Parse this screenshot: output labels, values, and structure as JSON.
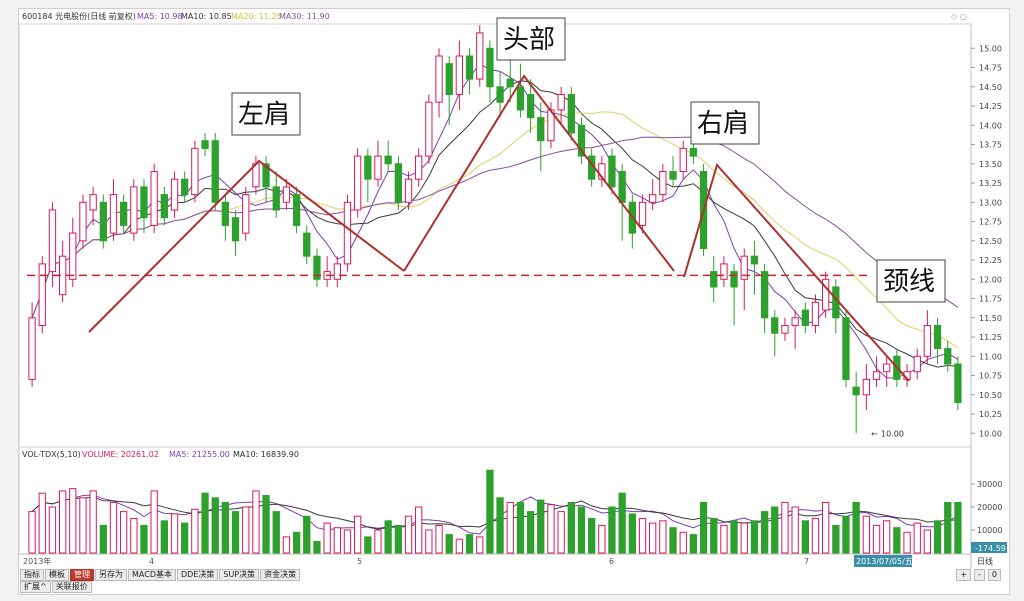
{
  "header": {
    "title": "600184 光电股份(日线 前复权)",
    "ma5": "MA5: 10.98",
    "ma10": "MA10: 10.85",
    "ma20": "MA20: 11.25",
    "ma30": "MA30: 11.90"
  },
  "colors": {
    "up": "#d81b5a",
    "down": "#2ea02e",
    "ma5": "#7a3db8",
    "ma10": "#3a3a3a",
    "ma20": "#e0d060",
    "ma30": "#8e4d9e",
    "trend": "#b03030",
    "neckline": "#c62828"
  },
  "annotations": {
    "left_shoulder": "左肩",
    "head": "头部",
    "right_shoulder": "右肩",
    "neckline": "颈线",
    "low_label": "10.00"
  },
  "volume_header": {
    "name": "VOL-TDX(5,10)",
    "volume": "VOLUME: 20261.02",
    "ma5": "MA5: 21255.00",
    "ma10": "MA10: 16839.90"
  },
  "x_axis": {
    "labels": [
      "2013年",
      "4",
      "5",
      "6",
      "7"
    ],
    "date_badge": "2013/07/05/五",
    "right_label": "日线"
  },
  "vol_right_value": "-174.59",
  "toolbar": {
    "tabs": [
      "指标",
      "模板",
      "管理",
      "另存为",
      "MACD基本",
      "DDE决策",
      "SUP决策",
      "资金决策"
    ],
    "active": "管理",
    "row2": [
      "扩展^",
      "关联报价"
    ],
    "controls": [
      "+",
      "-",
      "0"
    ]
  },
  "chart_data": [
    {
      "type": "candlestick",
      "ylim": [
        9.9,
        15.25
      ],
      "yticks": [
        "15.00",
        "14.75",
        "14.50",
        "14.25",
        "14.00",
        "13.75",
        "13.50",
        "13.25",
        "13.00",
        "12.75",
        "12.50",
        "12.25",
        "12.00",
        "11.75",
        "11.50",
        "11.25",
        "11.00",
        "10.75",
        "10.50",
        "10.25",
        "10.00"
      ],
      "neckline": 12.05,
      "low_marker": 10.0,
      "candles": [
        {
          "o": 10.7,
          "c": 11.5,
          "h": 11.7,
          "l": 10.6
        },
        {
          "o": 11.4,
          "c": 12.2,
          "h": 12.3,
          "l": 11.3
        },
        {
          "o": 12.1,
          "c": 12.9,
          "h": 13.0,
          "l": 11.9
        },
        {
          "o": 11.8,
          "c": 12.3,
          "h": 12.5,
          "l": 11.7
        },
        {
          "o": 12.0,
          "c": 12.6,
          "h": 12.8,
          "l": 11.9
        },
        {
          "o": 12.5,
          "c": 13.0,
          "h": 13.1,
          "l": 12.4
        },
        {
          "o": 12.9,
          "c": 13.1,
          "h": 13.2,
          "l": 12.7
        },
        {
          "o": 13.0,
          "c": 12.5,
          "h": 13.1,
          "l": 12.4
        },
        {
          "o": 12.6,
          "c": 13.1,
          "h": 13.3,
          "l": 12.5
        },
        {
          "o": 13.0,
          "c": 12.7,
          "h": 13.1,
          "l": 12.6
        },
        {
          "o": 12.6,
          "c": 13.2,
          "h": 13.3,
          "l": 12.5
        },
        {
          "o": 13.2,
          "c": 12.8,
          "h": 13.3,
          "l": 12.6
        },
        {
          "o": 12.7,
          "c": 13.4,
          "h": 13.5,
          "l": 12.6
        },
        {
          "o": 13.1,
          "c": 12.8,
          "h": 13.2,
          "l": 12.7
        },
        {
          "o": 12.9,
          "c": 13.3,
          "h": 13.4,
          "l": 12.8
        },
        {
          "o": 13.3,
          "c": 13.1,
          "h": 13.4,
          "l": 13.0
        },
        {
          "o": 13.1,
          "c": 13.7,
          "h": 13.8,
          "l": 13.0
        },
        {
          "o": 13.8,
          "c": 13.7,
          "h": 13.9,
          "l": 13.6
        },
        {
          "o": 13.8,
          "c": 13.0,
          "h": 13.9,
          "l": 12.9
        },
        {
          "o": 13.0,
          "c": 12.7,
          "h": 13.1,
          "l": 12.5
        },
        {
          "o": 12.8,
          "c": 12.5,
          "h": 12.9,
          "l": 12.3
        },
        {
          "o": 12.6,
          "c": 13.1,
          "h": 13.2,
          "l": 12.5
        },
        {
          "o": 13.2,
          "c": 13.5,
          "h": 13.6,
          "l": 13.1
        },
        {
          "o": 13.5,
          "c": 13.2,
          "h": 13.6,
          "l": 13.0
        },
        {
          "o": 13.2,
          "c": 12.9,
          "h": 13.4,
          "l": 12.8
        },
        {
          "o": 13.0,
          "c": 13.2,
          "h": 13.3,
          "l": 12.9
        },
        {
          "o": 13.1,
          "c": 12.7,
          "h": 13.2,
          "l": 12.6
        },
        {
          "o": 12.6,
          "c": 12.3,
          "h": 12.7,
          "l": 12.2
        },
        {
          "o": 12.3,
          "c": 12.0,
          "h": 12.4,
          "l": 11.9
        },
        {
          "o": 12.0,
          "c": 12.1,
          "h": 12.3,
          "l": 11.9
        },
        {
          "o": 12.0,
          "c": 12.2,
          "h": 12.3,
          "l": 11.9
        },
        {
          "o": 12.2,
          "c": 13.0,
          "h": 13.1,
          "l": 12.1
        },
        {
          "o": 12.9,
          "c": 13.6,
          "h": 13.7,
          "l": 12.8
        },
        {
          "o": 13.6,
          "c": 13.3,
          "h": 13.7,
          "l": 13.0
        },
        {
          "o": 13.3,
          "c": 13.6,
          "h": 13.8,
          "l": 13.2
        },
        {
          "o": 13.6,
          "c": 13.5,
          "h": 13.8,
          "l": 13.4
        },
        {
          "o": 13.5,
          "c": 13.0,
          "h": 13.6,
          "l": 12.9
        },
        {
          "o": 13.0,
          "c": 13.3,
          "h": 13.4,
          "l": 12.9
        },
        {
          "o": 13.3,
          "c": 13.6,
          "h": 13.7,
          "l": 13.2
        },
        {
          "o": 13.6,
          "c": 14.3,
          "h": 14.4,
          "l": 13.5
        },
        {
          "o": 14.3,
          "c": 14.9,
          "h": 15.0,
          "l": 14.1
        },
        {
          "o": 14.8,
          "c": 14.4,
          "h": 14.9,
          "l": 14.0
        },
        {
          "o": 14.4,
          "c": 14.9,
          "h": 15.1,
          "l": 14.2
        },
        {
          "o": 14.9,
          "c": 14.6,
          "h": 15.0,
          "l": 14.4
        },
        {
          "o": 14.6,
          "c": 15.2,
          "h": 15.3,
          "l": 14.5
        },
        {
          "o": 15.0,
          "c": 14.5,
          "h": 15.1,
          "l": 14.3
        },
        {
          "o": 14.5,
          "c": 14.3,
          "h": 14.7,
          "l": 14.1
        },
        {
          "o": 14.6,
          "c": 14.5,
          "h": 14.9,
          "l": 14.3
        },
        {
          "o": 14.5,
          "c": 14.2,
          "h": 14.8,
          "l": 14.1
        },
        {
          "o": 14.4,
          "c": 14.1,
          "h": 14.6,
          "l": 13.9
        },
        {
          "o": 14.1,
          "c": 13.8,
          "h": 14.3,
          "l": 13.4
        },
        {
          "o": 13.8,
          "c": 14.2,
          "h": 14.3,
          "l": 13.7
        },
        {
          "o": 14.2,
          "c": 14.4,
          "h": 14.5,
          "l": 14.0
        },
        {
          "o": 14.4,
          "c": 13.9,
          "h": 14.5,
          "l": 13.8
        },
        {
          "o": 14.0,
          "c": 13.6,
          "h": 14.1,
          "l": 13.5
        },
        {
          "o": 13.6,
          "c": 13.3,
          "h": 13.7,
          "l": 13.2
        },
        {
          "o": 13.3,
          "c": 13.5,
          "h": 13.6,
          "l": 13.2
        },
        {
          "o": 13.6,
          "c": 13.2,
          "h": 13.7,
          "l": 13.1
        },
        {
          "o": 13.4,
          "c": 13.0,
          "h": 13.5,
          "l": 12.5
        },
        {
          "o": 13.0,
          "c": 12.6,
          "h": 13.1,
          "l": 12.4
        },
        {
          "o": 12.7,
          "c": 13.0,
          "h": 13.1,
          "l": 12.6
        },
        {
          "o": 13.0,
          "c": 13.1,
          "h": 13.3,
          "l": 12.9
        },
        {
          "o": 13.1,
          "c": 13.4,
          "h": 13.5,
          "l": 13.0
        },
        {
          "o": 13.4,
          "c": 13.3,
          "h": 13.6,
          "l": 13.2
        },
        {
          "o": 13.4,
          "c": 13.7,
          "h": 13.8,
          "l": 13.3
        },
        {
          "o": 13.7,
          "c": 13.6,
          "h": 13.8,
          "l": 13.5
        },
        {
          "o": 13.4,
          "c": 12.4,
          "h": 13.5,
          "l": 12.3
        },
        {
          "o": 12.1,
          "c": 11.9,
          "h": 12.3,
          "l": 11.7
        },
        {
          "o": 12.0,
          "c": 12.2,
          "h": 12.3,
          "l": 11.9
        },
        {
          "o": 12.1,
          "c": 11.9,
          "h": 12.2,
          "l": 11.4
        },
        {
          "o": 12.0,
          "c": 12.3,
          "h": 12.4,
          "l": 11.6
        },
        {
          "o": 12.3,
          "c": 12.2,
          "h": 12.5,
          "l": 11.8
        },
        {
          "o": 12.1,
          "c": 11.5,
          "h": 12.2,
          "l": 11.3
        },
        {
          "o": 11.5,
          "c": 11.3,
          "h": 11.6,
          "l": 11.0
        },
        {
          "o": 11.3,
          "c": 11.4,
          "h": 11.5,
          "l": 11.2
        },
        {
          "o": 11.4,
          "c": 11.5,
          "h": 11.6,
          "l": 11.1
        },
        {
          "o": 11.6,
          "c": 11.4,
          "h": 11.7,
          "l": 11.3
        },
        {
          "o": 11.4,
          "c": 11.7,
          "h": 11.8,
          "l": 11.3
        },
        {
          "o": 11.6,
          "c": 12.0,
          "h": 12.1,
          "l": 11.5
        },
        {
          "o": 11.9,
          "c": 11.5,
          "h": 12.0,
          "l": 11.3
        },
        {
          "o": 11.5,
          "c": 10.7,
          "h": 11.6,
          "l": 10.6
        },
        {
          "o": 10.6,
          "c": 10.5,
          "h": 10.8,
          "l": 10.0
        },
        {
          "o": 10.5,
          "c": 10.7,
          "h": 10.9,
          "l": 10.3
        },
        {
          "o": 10.7,
          "c": 10.8,
          "h": 11.0,
          "l": 10.6
        },
        {
          "o": 10.8,
          "c": 10.9,
          "h": 11.0,
          "l": 10.6
        },
        {
          "o": 11.0,
          "c": 10.7,
          "h": 11.1,
          "l": 10.6
        },
        {
          "o": 10.7,
          "c": 10.8,
          "h": 10.9,
          "l": 10.6
        },
        {
          "o": 10.8,
          "c": 11.0,
          "h": 11.1,
          "l": 10.7
        },
        {
          "o": 11.0,
          "c": 11.4,
          "h": 11.6,
          "l": 10.9
        },
        {
          "o": 11.4,
          "c": 11.1,
          "h": 11.5,
          "l": 10.9
        },
        {
          "o": 11.1,
          "c": 10.9,
          "h": 11.2,
          "l": 10.8
        },
        {
          "o": 10.9,
          "c": 10.4,
          "h": 11.0,
          "l": 10.3
        }
      ]
    },
    {
      "type": "bar",
      "name": "VOLUME",
      "ylim": [
        0,
        40000
      ],
      "yticks": [
        "30000",
        "20000",
        "10000"
      ],
      "values": [
        18000,
        26000,
        20000,
        27000,
        28000,
        24000,
        27000,
        12000,
        22000,
        18000,
        15000,
        12000,
        27000,
        14000,
        17000,
        13000,
        19000,
        26000,
        24000,
        22000,
        18000,
        20000,
        27000,
        25000,
        18000,
        7000,
        9000,
        16000,
        5000,
        13000,
        11000,
        10000,
        16000,
        7000,
        10000,
        14000,
        12000,
        16000,
        20000,
        10000,
        12000,
        8000,
        6000,
        8000,
        7000,
        36000,
        24000,
        22000,
        22000,
        18000,
        23000,
        21000,
        18000,
        22000,
        20000,
        15000,
        12000,
        20000,
        26000,
        17000,
        15000,
        13000,
        14000,
        11000,
        9000,
        8000,
        22000,
        15000,
        12000,
        14000,
        13000,
        14000,
        18000,
        20000,
        22000,
        20000,
        14000,
        15000,
        22000,
        12000,
        16000,
        22000,
        16000,
        12000,
        14000,
        11000,
        9000,
        13000,
        10000,
        14000,
        22000,
        22000
      ],
      "up": [
        1,
        1,
        1,
        1,
        1,
        1,
        1,
        0,
        1,
        1,
        1,
        0,
        1,
        0,
        1,
        0,
        1,
        0,
        0,
        0,
        0,
        1,
        1,
        0,
        0,
        1,
        0,
        0,
        0,
        1,
        1,
        1,
        1,
        0,
        1,
        0,
        0,
        1,
        1,
        1,
        1,
        0,
        1,
        0,
        1,
        0,
        0,
        1,
        0,
        0,
        0,
        1,
        1,
        0,
        0,
        0,
        1,
        0,
        0,
        0,
        1,
        1,
        1,
        0,
        1,
        0,
        0,
        0,
        1,
        0,
        1,
        0,
        0,
        0,
        1,
        1,
        0,
        1,
        1,
        0,
        0,
        0,
        1,
        1,
        1,
        0,
        1,
        1,
        1,
        0,
        0,
        0
      ]
    }
  ]
}
